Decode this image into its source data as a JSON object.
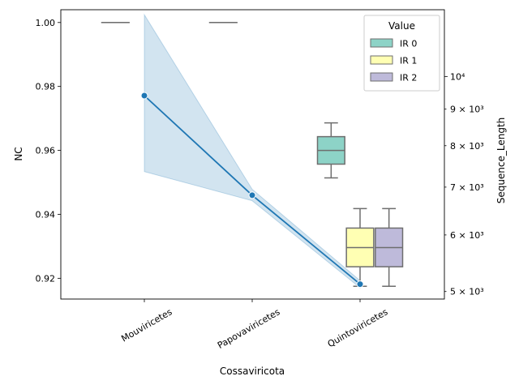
{
  "chart_data": {
    "type": "box+line",
    "xlabel": "Cossaviricota",
    "categories": [
      "Mouviricetes",
      "Papovaviricetes",
      "Quintoviricetes"
    ],
    "left_axis": {
      "label": "NC",
      "ylim": [
        0.9135,
        1.004
      ],
      "ticks": [
        0.92,
        0.94,
        0.96,
        0.98,
        1.0
      ],
      "tick_labels": [
        "0.92",
        "0.94",
        "0.96",
        "0.98",
        "1.00"
      ]
    },
    "right_axis": {
      "label": "Sequence_Length",
      "scale": "log",
      "ylim": [
        4880,
        12400
      ],
      "ticks": [
        5000,
        6000,
        7000,
        8000,
        9000,
        10000
      ],
      "tick_labels": [
        "5 × 10³",
        "6 × 10³",
        "7 × 10³",
        "8 × 10³",
        "9 × 10³",
        "10⁴"
      ]
    },
    "legend": {
      "title": "Value",
      "placement": "top-right",
      "entries": [
        "IR 0",
        "IR 1",
        "IR 2"
      ],
      "colors": [
        "#8dd3c7",
        "#ffffb3",
        "#bebada"
      ]
    },
    "box_series": [
      {
        "name": "IR 0",
        "color": "#8dd3c7",
        "boxes": [
          {
            "category": "Mouviricetes",
            "q1": 1.0,
            "median": 1.0,
            "q3": 1.0,
            "whisker_low": 1.0,
            "whisker_high": 1.0
          },
          {
            "category": "Papovaviricetes",
            "q1": 1.0,
            "median": 1.0,
            "q3": 1.0,
            "whisker_low": 1.0,
            "whisker_high": 1.0
          },
          {
            "category": "Quintoviricetes",
            "q1": 0.9557,
            "median": 0.96,
            "q3": 0.9643,
            "whisker_low": 0.9514,
            "whisker_high": 0.9686
          }
        ]
      },
      {
        "name": "IR 1",
        "color": "#ffffb3",
        "boxes": [
          {
            "category": "Quintoviricetes",
            "q1": 0.9236,
            "median": 0.9296,
            "q3": 0.9357,
            "whisker_low": 0.9175,
            "whisker_high": 0.9418
          }
        ]
      },
      {
        "name": "IR 2",
        "color": "#bebada",
        "boxes": [
          {
            "category": "Quintoviricetes",
            "q1": 0.9236,
            "median": 0.9296,
            "q3": 0.9357,
            "whisker_low": 0.9175,
            "whisker_high": 0.9418
          }
        ]
      }
    ],
    "line_series": {
      "axis": "right",
      "color": "#1f77b4",
      "points": [
        {
          "category": "Mouviricetes",
          "value": 9400,
          "ci_low": 7360,
          "ci_high": 12200
        },
        {
          "category": "Papovaviricetes",
          "value": 6820,
          "ci_low": 6700,
          "ci_high": 6950
        },
        {
          "category": "Quintoviricetes",
          "value": 5120,
          "ci_low": 5060,
          "ci_high": 5180
        }
      ]
    }
  }
}
